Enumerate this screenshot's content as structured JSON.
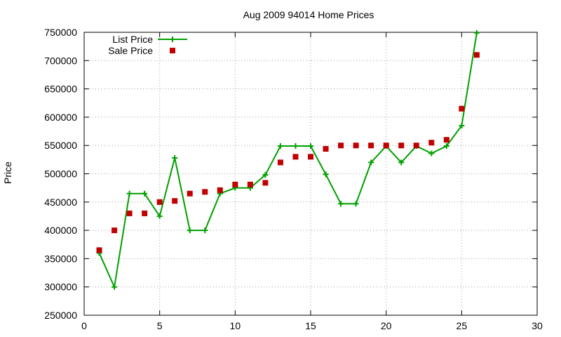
{
  "chart_data": {
    "type": "line",
    "title": "Aug 2009 94014 Home Prices",
    "xlabel": "",
    "ylabel": "Price",
    "xlim": [
      0,
      30
    ],
    "ylim": [
      250000,
      750000
    ],
    "x_ticks": [
      0,
      5,
      10,
      15,
      20,
      25,
      30
    ],
    "y_ticks": [
      250000,
      300000,
      350000,
      400000,
      450000,
      500000,
      550000,
      600000,
      650000,
      700000,
      750000
    ],
    "grid": true,
    "legend_position": "top-left",
    "series": [
      {
        "name": "List Price",
        "style": "line-with-plus-markers",
        "color": "#00a000",
        "points": [
          [
            1,
            360000
          ],
          [
            2,
            300000
          ],
          [
            3,
            465000
          ],
          [
            4,
            465000
          ],
          [
            5,
            425000
          ],
          [
            6,
            528000
          ],
          [
            7,
            400000
          ],
          [
            8,
            400000
          ],
          [
            9,
            465000
          ],
          [
            10,
            475000
          ],
          [
            11,
            475000
          ],
          [
            12,
            498000
          ],
          [
            13,
            549000
          ],
          [
            14,
            549000
          ],
          [
            15,
            549000
          ],
          [
            16,
            499000
          ],
          [
            17,
            447000
          ],
          [
            18,
            447000
          ],
          [
            19,
            520000
          ],
          [
            20,
            549000
          ],
          [
            21,
            520000
          ],
          [
            22,
            549000
          ],
          [
            23,
            536000
          ],
          [
            24,
            549000
          ],
          [
            25,
            585000
          ],
          [
            26,
            749000
          ]
        ]
      },
      {
        "name": "Sale Price",
        "style": "square-markers",
        "color": "#c00000",
        "points": [
          [
            1,
            365000
          ],
          [
            2,
            400000
          ],
          [
            3,
            430000
          ],
          [
            4,
            430000
          ],
          [
            5,
            450000
          ],
          [
            6,
            452000
          ],
          [
            7,
            465000
          ],
          [
            8,
            468000
          ],
          [
            9,
            471000
          ],
          [
            10,
            481000
          ],
          [
            11,
            481000
          ],
          [
            12,
            484000
          ],
          [
            13,
            520000
          ],
          [
            14,
            530000
          ],
          [
            15,
            530000
          ],
          [
            16,
            544000
          ],
          [
            17,
            550000
          ],
          [
            18,
            550000
          ],
          [
            19,
            550000
          ],
          [
            20,
            550000
          ],
          [
            21,
            550000
          ],
          [
            22,
            550000
          ],
          [
            23,
            555000
          ],
          [
            24,
            560000
          ],
          [
            25,
            615000
          ],
          [
            26,
            710000
          ]
        ]
      }
    ]
  }
}
